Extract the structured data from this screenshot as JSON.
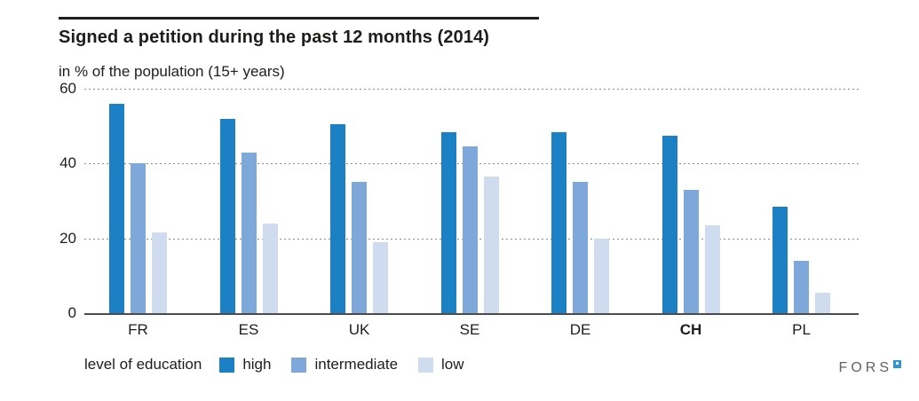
{
  "header": {
    "title": "Signed a petition during the past 12 months (2014)",
    "subtitle": "in % of the population (15+ years)"
  },
  "chart_data": {
    "type": "bar",
    "categories": [
      "FR",
      "ES",
      "UK",
      "SE",
      "DE",
      "CH",
      "PL"
    ],
    "emphasized_category": "CH",
    "series": [
      {
        "name": "high",
        "color": "#1b80c4",
        "values": [
          56,
          52,
          50.5,
          48.5,
          48.5,
          47.5,
          28.5
        ]
      },
      {
        "name": "intermediate",
        "color": "#7fa8da",
        "values": [
          40,
          43,
          35,
          44.5,
          35,
          33,
          14
        ]
      },
      {
        "name": "low",
        "color": "#cfdcf0",
        "values": [
          21.5,
          24,
          19,
          36.5,
          20,
          23.5,
          5.5
        ]
      }
    ],
    "ylim": [
      0,
      60
    ],
    "yticks": [
      0,
      20,
      40,
      60
    ],
    "grid": "dotted-horizontal",
    "legend_label": "level of education",
    "legend_position": "bottom",
    "colors": {
      "axis": "#4c4c4c",
      "grid": "#8a8a8a",
      "text": "#1d1d1b",
      "brand_square": "#2e96d5"
    }
  },
  "footer": {
    "brand": "FORS"
  }
}
